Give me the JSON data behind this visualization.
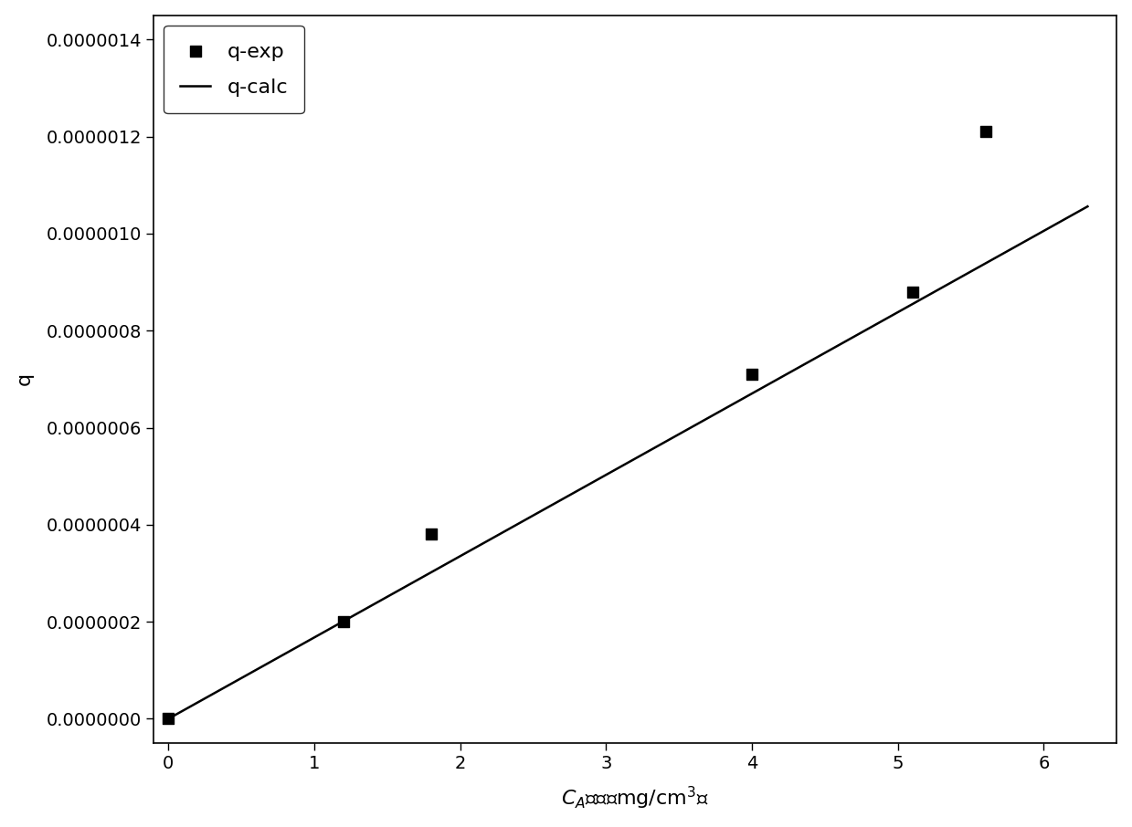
{
  "exp_x": [
    0.0,
    1.2,
    1.8,
    4.0,
    5.1,
    5.6
  ],
  "exp_y": [
    0.0,
    2e-07,
    3.8e-07,
    7.1e-07,
    8.8e-07,
    1.21e-06
  ],
  "line_x": [
    0.0,
    6.3
  ],
  "line_slope": 1.676e-07,
  "line_intercept": 0.0,
  "xlabel": "C$_{A}$／　（mg/cm$^{3}$）",
  "ylabel": "q",
  "xlim": [
    -0.1,
    6.5
  ],
  "ylim": [
    -5e-08,
    1.45e-06
  ],
  "yticks": [
    0.0,
    2e-07,
    4e-07,
    6e-07,
    8e-07,
    1e-06,
    1.2e-06,
    1.4e-06
  ],
  "xticks": [
    0,
    1,
    2,
    3,
    4,
    5,
    6
  ],
  "legend_marker_label": "q-exp",
  "legend_line_label": "q-calc",
  "marker_color": "black",
  "line_color": "black",
  "marker_size": 9,
  "line_width": 1.8,
  "background_color": "#ffffff",
  "font_size": 16,
  "tick_labelsize": 14
}
